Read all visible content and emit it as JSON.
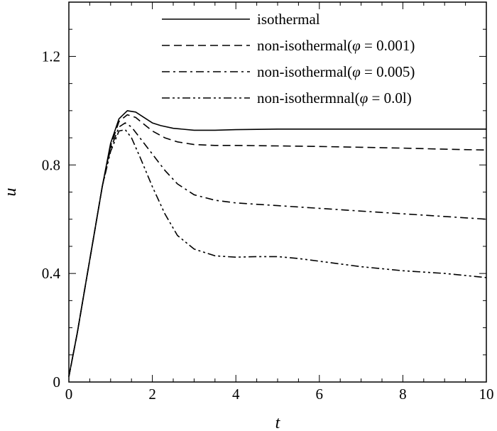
{
  "chart_data": {
    "type": "line",
    "title": "",
    "xlabel": "t",
    "ylabel": "u",
    "xlim": [
      0,
      10
    ],
    "ylim": [
      0,
      1.4
    ],
    "x_ticks": [
      0,
      2,
      4,
      6,
      8,
      10
    ],
    "x_tick_labels": [
      "0",
      "2",
      "4",
      "6",
      "8",
      "10"
    ],
    "y_ticks": [
      0,
      0.4,
      0.8,
      1.2
    ],
    "y_tick_labels": [
      "0",
      "0.4",
      "0.8",
      "1.2"
    ],
    "grid": false,
    "legend_position": "top-right",
    "series": [
      {
        "name": "isothermal",
        "legend_prefix": "isothermal",
        "legend_phi": "",
        "legend_value": "",
        "legend_suffix": "",
        "dash": "solid",
        "x": [
          0,
          0.2,
          0.4,
          0.6,
          0.8,
          1.0,
          1.2,
          1.4,
          1.6,
          1.8,
          2.0,
          2.2,
          2.5,
          3.0,
          3.5,
          4.0,
          5.0,
          6.0,
          7.0,
          8.0,
          9.0,
          10.0
        ],
        "y": [
          0.02,
          0.18,
          0.36,
          0.54,
          0.72,
          0.88,
          0.97,
          1.0,
          0.995,
          0.975,
          0.955,
          0.945,
          0.935,
          0.928,
          0.928,
          0.93,
          0.932,
          0.932,
          0.932,
          0.932,
          0.932,
          0.932
        ]
      },
      {
        "name": "non-isothermal(φ = 0.001)",
        "legend_prefix": "non-isothermal(",
        "legend_phi": "φ",
        "legend_value": " = 0.001",
        "legend_suffix": ")",
        "dash": "dashed",
        "x": [
          0,
          0.2,
          0.4,
          0.6,
          0.8,
          1.0,
          1.2,
          1.4,
          1.6,
          1.8,
          2.0,
          2.3,
          2.6,
          3.0,
          3.5,
          4.0,
          5.0,
          6.0,
          7.0,
          8.0,
          9.0,
          10.0
        ],
        "y": [
          0.02,
          0.18,
          0.36,
          0.54,
          0.72,
          0.87,
          0.96,
          0.985,
          0.975,
          0.95,
          0.925,
          0.9,
          0.885,
          0.875,
          0.872,
          0.872,
          0.87,
          0.868,
          0.865,
          0.862,
          0.858,
          0.855
        ]
      },
      {
        "name": "non-isothermal(φ = 0.005)",
        "legend_prefix": "non-isothermal(",
        "legend_phi": "φ",
        "legend_value": " = 0.005",
        "legend_suffix": ")",
        "dash": "dashdot",
        "x": [
          0,
          0.2,
          0.4,
          0.6,
          0.8,
          1.0,
          1.2,
          1.35,
          1.5,
          1.7,
          2.0,
          2.3,
          2.6,
          3.0,
          3.5,
          4.0,
          5.0,
          6.0,
          7.0,
          8.0,
          9.0,
          10.0
        ],
        "y": [
          0.02,
          0.18,
          0.36,
          0.54,
          0.72,
          0.86,
          0.94,
          0.955,
          0.94,
          0.9,
          0.84,
          0.78,
          0.73,
          0.69,
          0.67,
          0.66,
          0.65,
          0.64,
          0.63,
          0.62,
          0.61,
          0.6
        ]
      },
      {
        "name": "non-isothermnal(φ = 0.01)",
        "legend_prefix": "non-isothermnal(",
        "legend_phi": "φ",
        "legend_value": " = 0.0l",
        "legend_suffix": ")",
        "dash": "dashdotdot",
        "x": [
          0,
          0.2,
          0.4,
          0.6,
          0.8,
          1.0,
          1.2,
          1.35,
          1.5,
          1.7,
          2.0,
          2.3,
          2.6,
          3.0,
          3.5,
          4.0,
          4.5,
          5.0,
          5.5,
          6.0,
          7.0,
          8.0,
          9.0,
          10.0
        ],
        "y": [
          0.02,
          0.18,
          0.36,
          0.54,
          0.72,
          0.85,
          0.925,
          0.93,
          0.9,
          0.83,
          0.72,
          0.62,
          0.54,
          0.49,
          0.465,
          0.46,
          0.462,
          0.462,
          0.455,
          0.445,
          0.425,
          0.41,
          0.4,
          0.385
        ]
      }
    ]
  }
}
